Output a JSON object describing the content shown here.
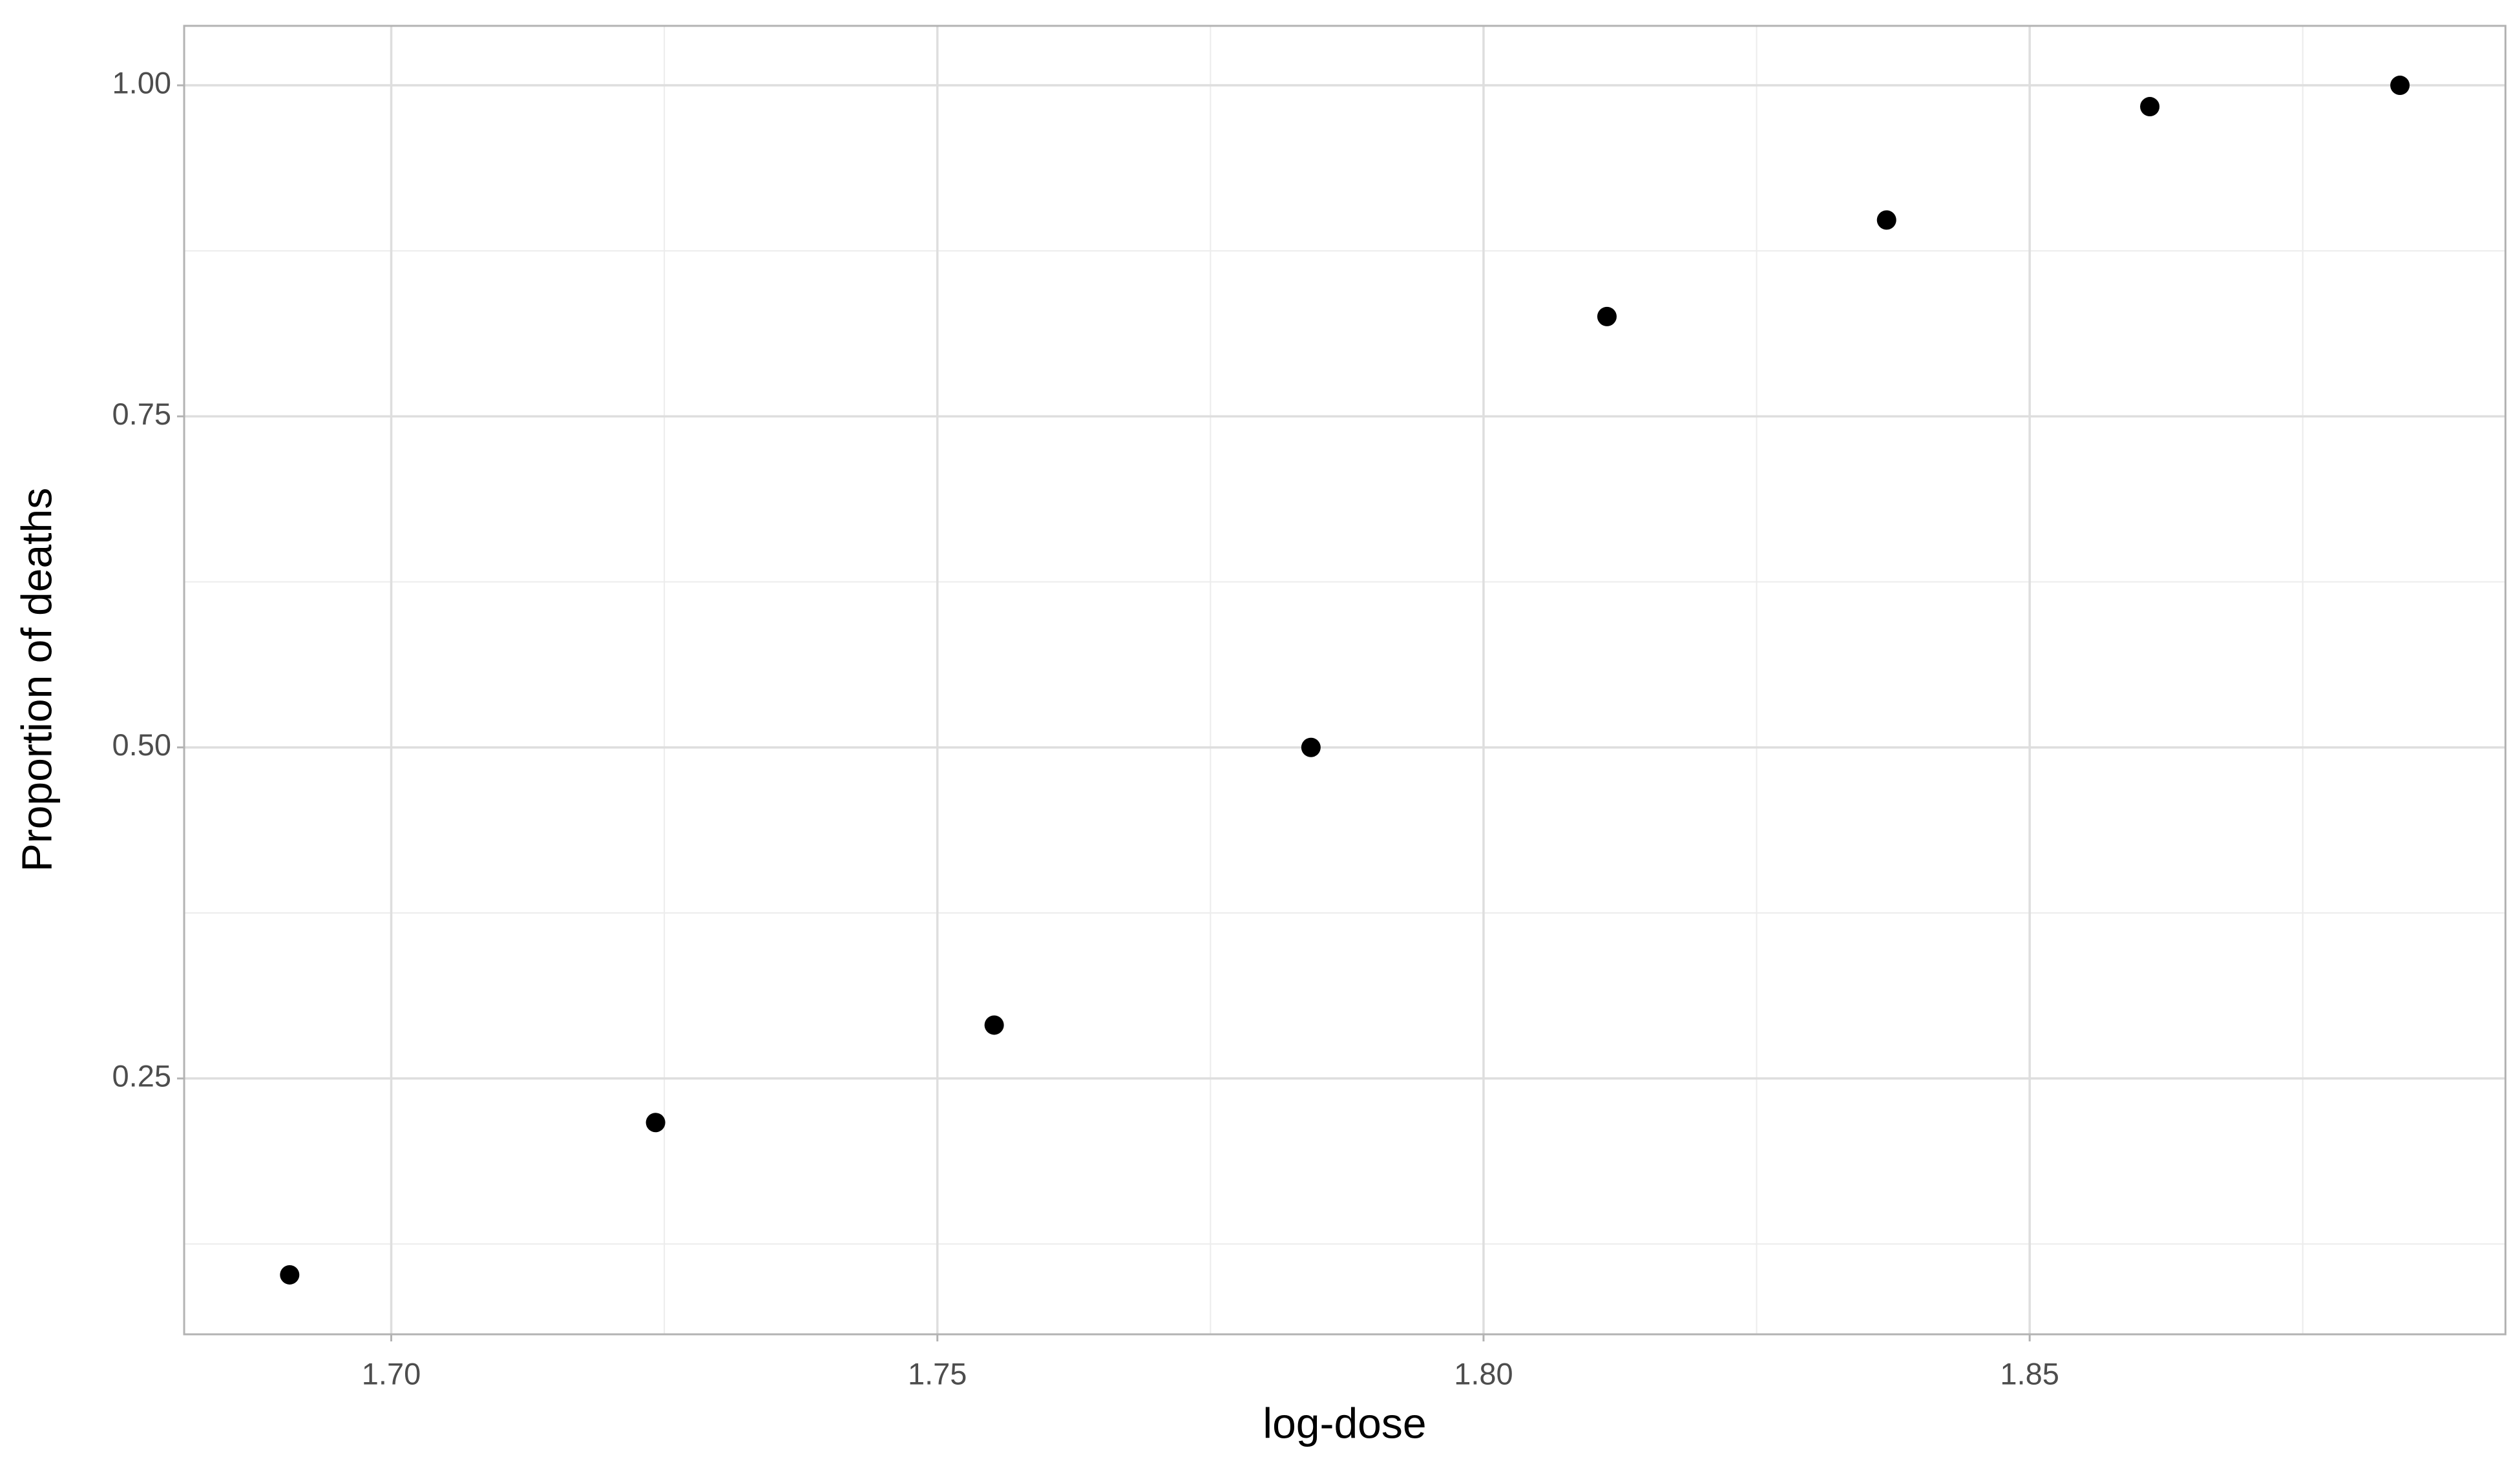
{
  "chart_data": {
    "type": "scatter",
    "x_label": "log-dose",
    "y_label": "Proportion of deaths",
    "x": [
      1.6907,
      1.7242,
      1.7552,
      1.7842,
      1.8113,
      1.8369,
      1.861,
      1.8839
    ],
    "values": [
      0.1017,
      0.2167,
      0.2903,
      0.5,
      0.8254,
      0.8983,
      0.9839,
      1.0
    ],
    "color": "#000000",
    "xlim": [
      1.68104,
      1.89356
    ],
    "ylim": [
      0.05678,
      1.04492
    ],
    "xticks": [
      {
        "value": 1.7,
        "label": "1.70"
      },
      1.75,
      {
        "value": 1.8,
        "label": "1.80"
      },
      1.85
    ],
    "yticks": [
      0.25,
      {
        "value": 0.5,
        "label": "0.50"
      },
      0.75,
      {
        "value": 1,
        "label": "1.00"
      }
    ],
    "grid": true
  }
}
